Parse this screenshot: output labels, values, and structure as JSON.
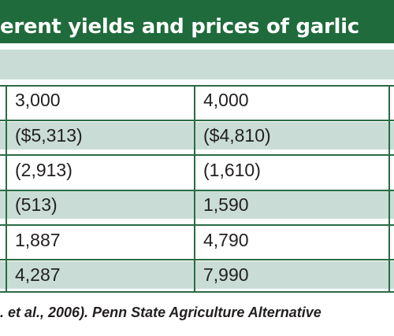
{
  "table": {
    "title": "erent yields and prices of garlic",
    "rows": [
      {
        "col1": "3,000",
        "col2": "4,000"
      },
      {
        "col1": "($5,313)",
        "col2": "($4,810)"
      },
      {
        "col1": "(2,913)",
        "col2": "(1,610)"
      },
      {
        "col1": "(513)",
        "col2": "1,590"
      },
      {
        "col1": "1,887",
        "col2": "4,790"
      },
      {
        "col1": "4,287",
        "col2": "7,990"
      }
    ],
    "footnote": ". et al., 2006). Penn State Agriculture Alternative"
  },
  "colors": {
    "title_background": "#1f6b3b",
    "shaded_row": "#c9ddd6",
    "grid_lines": "#2a6b45",
    "text": "#231f20"
  }
}
